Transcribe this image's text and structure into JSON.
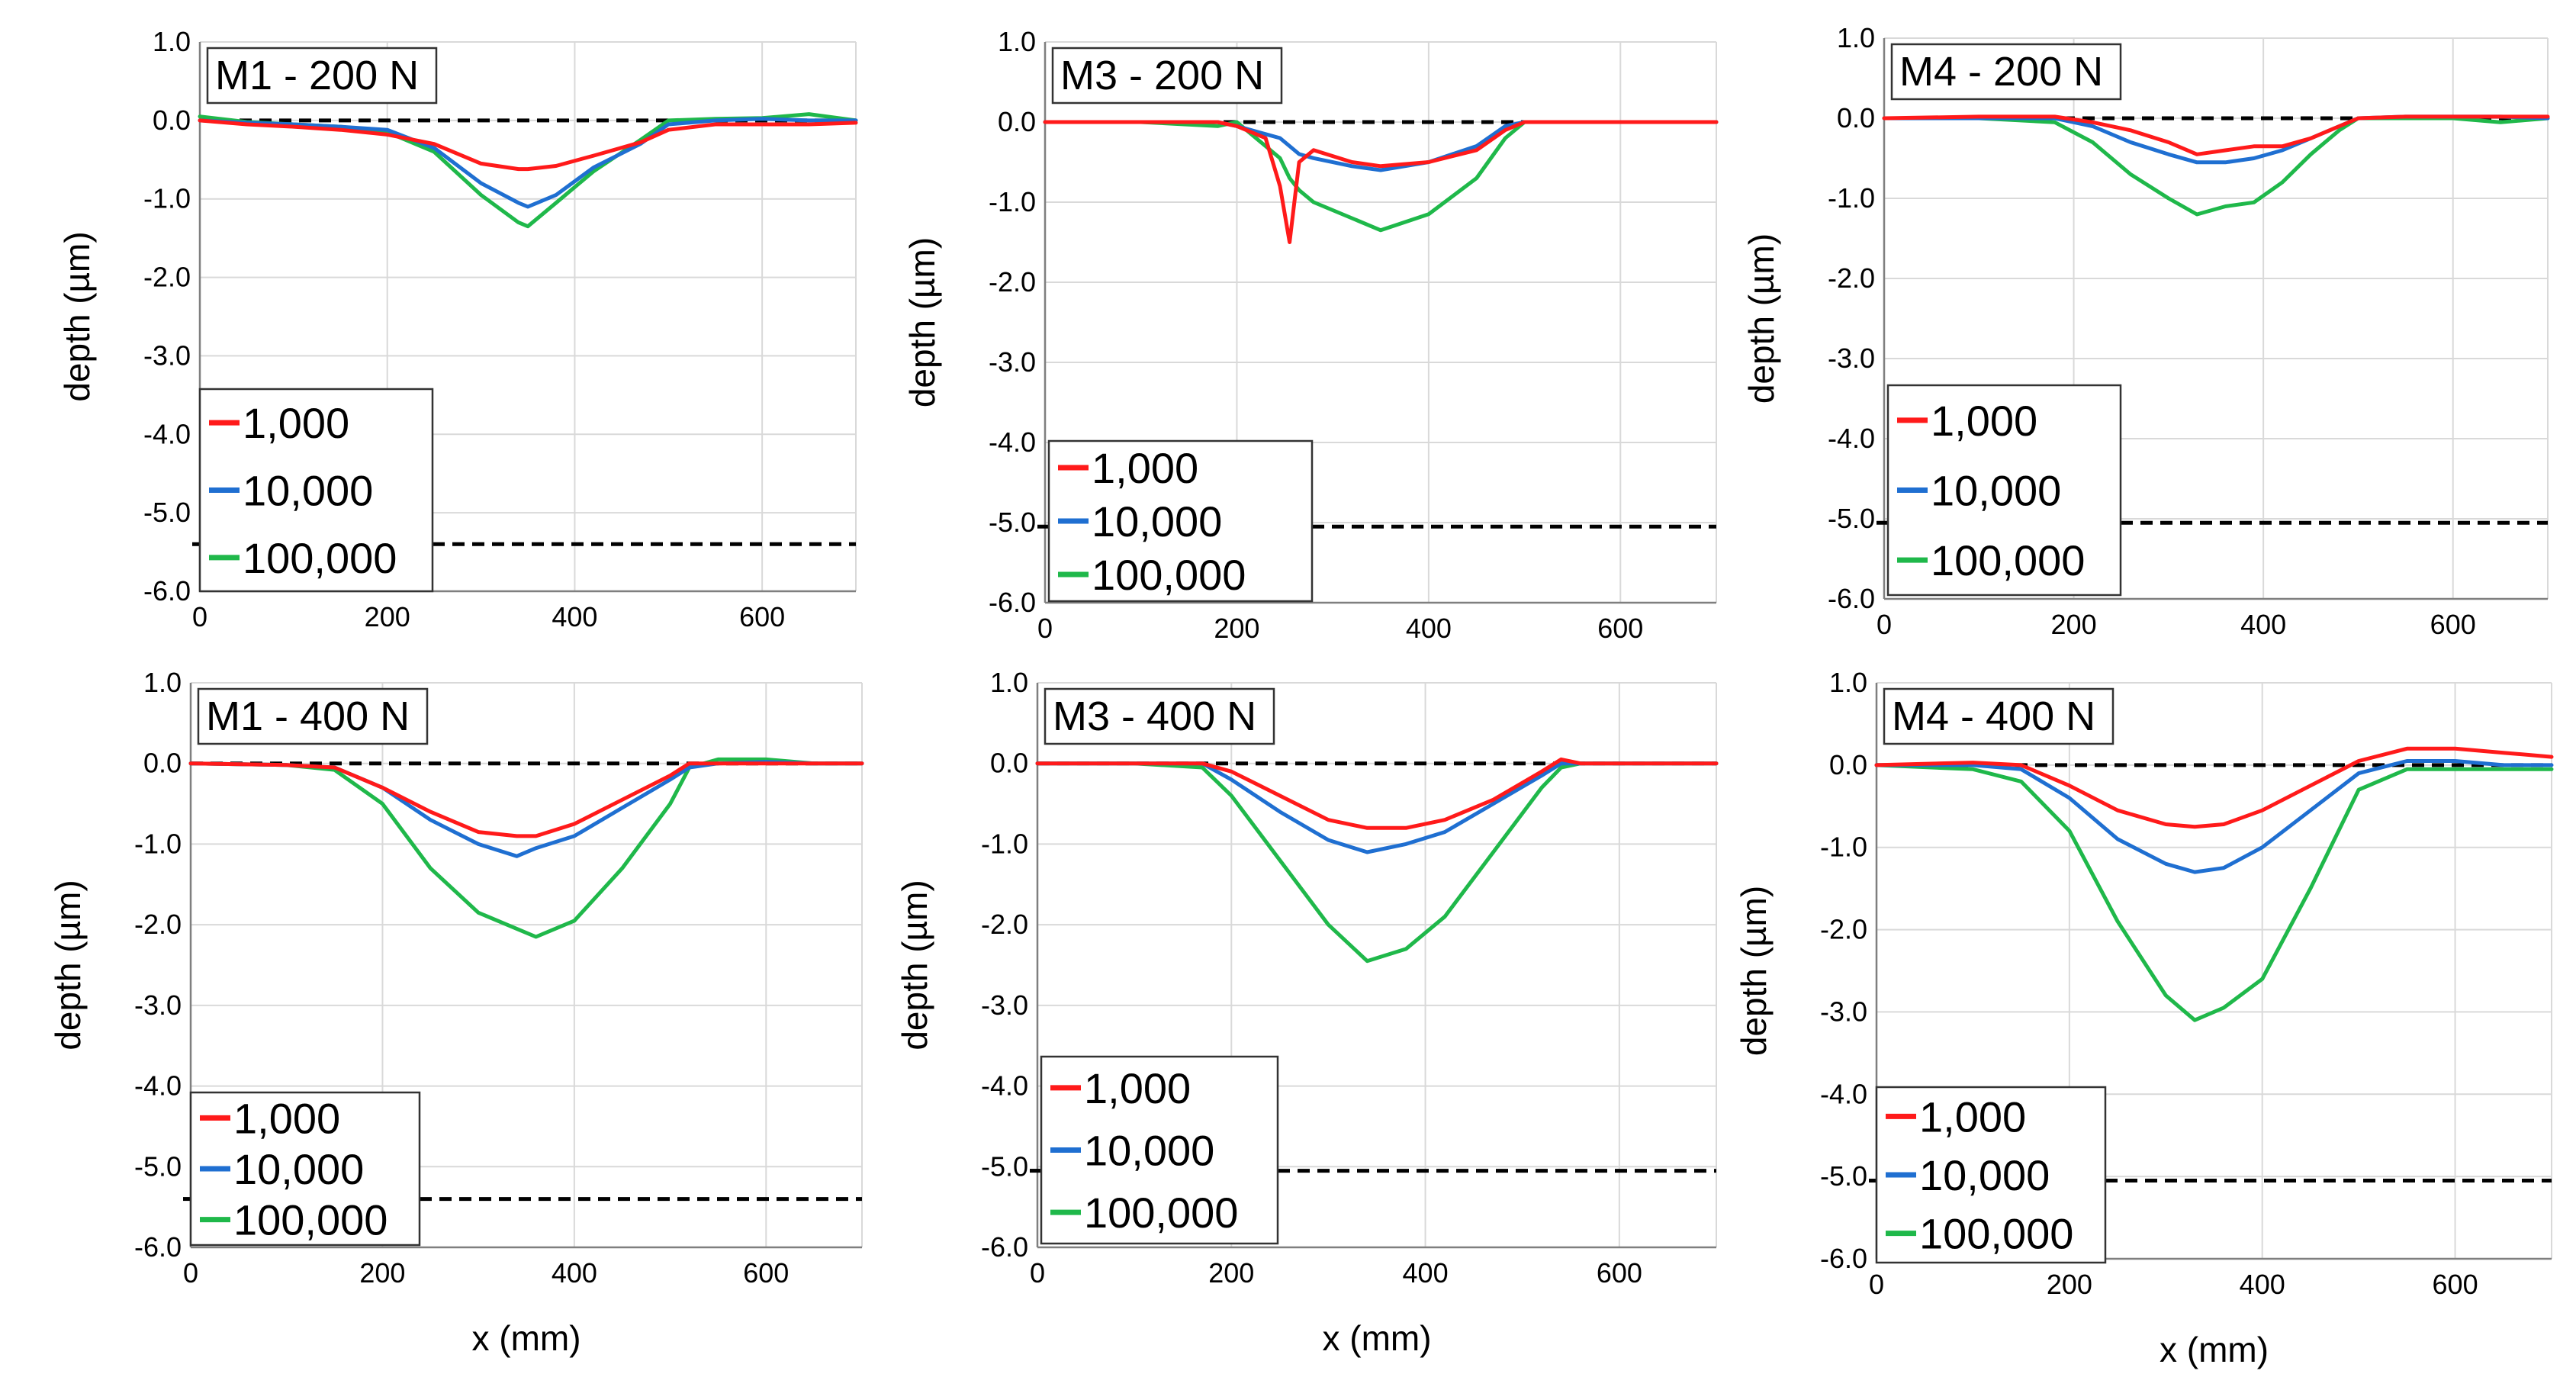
{
  "figure": {
    "x_title": "x (mm)",
    "y_title": "depth (µm)"
  },
  "colors": {
    "1,000": "#ff1a1a",
    "10,000": "#1f6fd1",
    "100,000": "#1fb84a",
    "reference": "#000000"
  },
  "chart_data": [
    {
      "type": "line",
      "title": "M1 - 200 N",
      "xlabel": "",
      "ylabel": "depth (µm)",
      "xlim": [
        0,
        700
      ],
      "ylim": [
        -6,
        1
      ],
      "xticks": [
        "0",
        "200",
        "400",
        "600"
      ],
      "yticks": [
        "1.0",
        "0.0",
        "-1.0",
        "-2.0",
        "-3.0",
        "-4.0",
        "-5.0",
        "-6.0"
      ],
      "reference_lines": [
        0.0,
        -5.4
      ],
      "legend": [
        "1,000",
        "10,000",
        "100,000"
      ],
      "x": [
        0,
        50,
        100,
        150,
        200,
        250,
        300,
        340,
        350,
        380,
        420,
        470,
        500,
        550,
        600,
        650,
        700
      ],
      "series": [
        {
          "name": "1,000",
          "values": [
            0.0,
            -0.05,
            -0.08,
            -0.12,
            -0.18,
            -0.3,
            -0.55,
            -0.62,
            -0.62,
            -0.58,
            -0.45,
            -0.28,
            -0.12,
            -0.05,
            -0.05,
            -0.05,
            -0.03
          ]
        },
        {
          "name": "10,000",
          "values": [
            0.0,
            -0.03,
            -0.05,
            -0.08,
            -0.12,
            -0.35,
            -0.8,
            -1.05,
            -1.1,
            -0.95,
            -0.6,
            -0.3,
            -0.05,
            0.0,
            0.02,
            0.0,
            0.0
          ]
        },
        {
          "name": "100,000",
          "values": [
            0.05,
            -0.02,
            -0.05,
            -0.08,
            -0.15,
            -0.4,
            -0.95,
            -1.3,
            -1.35,
            -1.05,
            -0.65,
            -0.25,
            0.0,
            0.02,
            0.03,
            0.08,
            0.0
          ]
        }
      ]
    },
    {
      "type": "line",
      "title": "M3 - 200 N",
      "xlabel": "",
      "ylabel": "depth (µm)",
      "xlim": [
        0,
        700
      ],
      "ylim": [
        -6,
        1
      ],
      "xticks": [
        "0",
        "200",
        "400",
        "600"
      ],
      "yticks": [
        "1.0",
        "0.0",
        "-1.0",
        "-2.0",
        "-3.0",
        "-4.0",
        "-5.0",
        "-6.0"
      ],
      "reference_lines": [
        0.0,
        -5.05
      ],
      "legend": [
        "1,000",
        "10,000",
        "100,000"
      ],
      "x": [
        0,
        100,
        180,
        200,
        230,
        245,
        255,
        265,
        280,
        320,
        350,
        400,
        450,
        480,
        500,
        600,
        700
      ],
      "series": [
        {
          "name": "1,000",
          "values": [
            0.0,
            0.0,
            0.0,
            -0.05,
            -0.2,
            -0.8,
            -1.5,
            -0.5,
            -0.35,
            -0.5,
            -0.55,
            -0.5,
            -0.35,
            -0.1,
            0.0,
            0.0,
            0.0
          ]
        },
        {
          "name": "10,000",
          "values": [
            0.0,
            0.0,
            0.0,
            -0.05,
            -0.15,
            -0.2,
            -0.3,
            -0.4,
            -0.45,
            -0.55,
            -0.6,
            -0.5,
            -0.3,
            -0.05,
            0.0,
            0.0,
            0.0
          ]
        },
        {
          "name": "100,000",
          "values": [
            0.0,
            0.0,
            -0.05,
            0.0,
            -0.3,
            -0.45,
            -0.7,
            -0.85,
            -1.0,
            -1.2,
            -1.35,
            -1.15,
            -0.7,
            -0.2,
            0.0,
            0.0,
            0.0
          ]
        }
      ]
    },
    {
      "type": "line",
      "title": "M4 - 200 N",
      "xlabel": "",
      "ylabel": "depth (µm)",
      "xlim": [
        0,
        700
      ],
      "ylim": [
        -6,
        1
      ],
      "xticks": [
        "0",
        "200",
        "400",
        "600"
      ],
      "yticks": [
        "1.0",
        "0.0",
        "-1.0",
        "-2.0",
        "-3.0",
        "-4.0",
        "-5.0",
        "-6.0"
      ],
      "reference_lines": [
        0.0,
        -5.05
      ],
      "legend": [
        "1,000",
        "10,000",
        "100,000"
      ],
      "x": [
        0,
        100,
        180,
        220,
        260,
        300,
        330,
        360,
        390,
        420,
        450,
        480,
        500,
        550,
        600,
        650,
        700
      ],
      "series": [
        {
          "name": "1,000",
          "values": [
            0.0,
            0.02,
            0.02,
            -0.05,
            -0.15,
            -0.3,
            -0.45,
            -0.4,
            -0.35,
            -0.35,
            -0.25,
            -0.1,
            0.0,
            0.02,
            0.02,
            0.02,
            0.02
          ]
        },
        {
          "name": "10,000",
          "values": [
            0.0,
            0.0,
            0.0,
            -0.1,
            -0.3,
            -0.45,
            -0.55,
            -0.55,
            -0.5,
            -0.4,
            -0.25,
            -0.1,
            0.0,
            0.02,
            0.02,
            0.02,
            0.0
          ]
        },
        {
          "name": "100,000",
          "values": [
            0.0,
            0.0,
            -0.05,
            -0.3,
            -0.7,
            -1.0,
            -1.2,
            -1.1,
            -1.05,
            -0.8,
            -0.45,
            -0.15,
            0.0,
            0.0,
            0.0,
            -0.05,
            0.0
          ]
        }
      ]
    },
    {
      "type": "line",
      "title": "M1 - 400 N",
      "xlabel": "x (mm)",
      "ylabel": "depth (µm)",
      "xlim": [
        0,
        700
      ],
      "ylim": [
        -6,
        1
      ],
      "xticks": [
        "0",
        "200",
        "400",
        "600"
      ],
      "yticks": [
        "1.0",
        "0.0",
        "-1.0",
        "-2.0",
        "-3.0",
        "-4.0",
        "-5.0",
        "-6.0"
      ],
      "reference_lines": [
        0.0,
        -5.4
      ],
      "legend": [
        "1,000",
        "10,000",
        "100,000"
      ],
      "x": [
        0,
        100,
        150,
        200,
        250,
        300,
        340,
        360,
        400,
        450,
        500,
        520,
        550,
        600,
        650,
        700
      ],
      "series": [
        {
          "name": "1,000",
          "values": [
            0.0,
            -0.02,
            -0.05,
            -0.3,
            -0.6,
            -0.85,
            -0.9,
            -0.9,
            -0.75,
            -0.45,
            -0.15,
            0.0,
            0.0,
            0.0,
            0.0,
            0.0
          ]
        },
        {
          "name": "10,000",
          "values": [
            0.0,
            -0.02,
            -0.05,
            -0.3,
            -0.7,
            -1.0,
            -1.15,
            -1.05,
            -0.9,
            -0.55,
            -0.2,
            -0.05,
            0.0,
            0.02,
            0.0,
            0.0
          ]
        },
        {
          "name": "100,000",
          "values": [
            0.0,
            -0.02,
            -0.08,
            -0.5,
            -1.3,
            -1.85,
            -2.05,
            -2.15,
            -1.95,
            -1.3,
            -0.5,
            -0.05,
            0.05,
            0.05,
            0.0,
            0.0
          ]
        }
      ]
    },
    {
      "type": "line",
      "title": "M3 - 400 N",
      "xlabel": "x (mm)",
      "ylabel": "depth (µm)",
      "xlim": [
        0,
        700
      ],
      "ylim": [
        -6,
        1
      ],
      "xticks": [
        "0",
        "200",
        "400",
        "600"
      ],
      "yticks": [
        "1.0",
        "0.0",
        "-1.0",
        "-2.0",
        "-3.0",
        "-4.0",
        "-5.0",
        "-6.0"
      ],
      "reference_lines": [
        0.0,
        -5.05
      ],
      "legend": [
        "1,000",
        "10,000",
        "100,000"
      ],
      "x": [
        0,
        100,
        170,
        200,
        250,
        300,
        340,
        380,
        420,
        470,
        520,
        540,
        560,
        600,
        650,
        700
      ],
      "series": [
        {
          "name": "1,000",
          "values": [
            0.0,
            0.0,
            0.0,
            -0.1,
            -0.4,
            -0.7,
            -0.8,
            -0.8,
            -0.7,
            -0.45,
            -0.1,
            0.05,
            0.0,
            0.0,
            0.0,
            0.0
          ]
        },
        {
          "name": "10,000",
          "values": [
            0.0,
            0.0,
            0.0,
            -0.2,
            -0.6,
            -0.95,
            -1.1,
            -1.0,
            -0.85,
            -0.5,
            -0.15,
            0.0,
            0.0,
            0.0,
            0.0,
            0.0
          ]
        },
        {
          "name": "100,000",
          "values": [
            0.0,
            0.0,
            -0.05,
            -0.4,
            -1.2,
            -2.0,
            -2.45,
            -2.3,
            -1.9,
            -1.1,
            -0.3,
            -0.05,
            0.0,
            0.0,
            0.0,
            0.0
          ]
        }
      ]
    },
    {
      "type": "line",
      "title": "M4 - 400 N",
      "xlabel": "x (mm)",
      "ylabel": "depth (µm)",
      "xlim": [
        0,
        700
      ],
      "ylim": [
        -6,
        1
      ],
      "xticks": [
        "0",
        "200",
        "400",
        "600"
      ],
      "yticks": [
        "1.0",
        "0.0",
        "-1.0",
        "-2.0",
        "-3.0",
        "-4.0",
        "-5.0",
        "-6.0"
      ],
      "reference_lines": [
        0.0,
        -5.05
      ],
      "legend": [
        "1,000",
        "10,000",
        "100,000"
      ],
      "x": [
        0,
        100,
        150,
        200,
        250,
        300,
        330,
        360,
        400,
        450,
        500,
        550,
        600,
        650,
        700
      ],
      "series": [
        {
          "name": "1,000",
          "values": [
            0.0,
            0.03,
            0.0,
            -0.25,
            -0.55,
            -0.72,
            -0.75,
            -0.72,
            -0.55,
            -0.25,
            0.05,
            0.2,
            0.2,
            0.15,
            0.1
          ]
        },
        {
          "name": "10,000",
          "values": [
            0.0,
            0.0,
            -0.05,
            -0.4,
            -0.9,
            -1.2,
            -1.3,
            -1.25,
            -1.0,
            -0.55,
            -0.1,
            0.05,
            0.05,
            0.0,
            0.0
          ]
        },
        {
          "name": "100,000",
          "values": [
            0.0,
            -0.05,
            -0.2,
            -0.8,
            -1.9,
            -2.8,
            -3.1,
            -2.95,
            -2.6,
            -1.5,
            -0.3,
            -0.05,
            -0.05,
            -0.05,
            -0.05
          ]
        }
      ]
    }
  ]
}
